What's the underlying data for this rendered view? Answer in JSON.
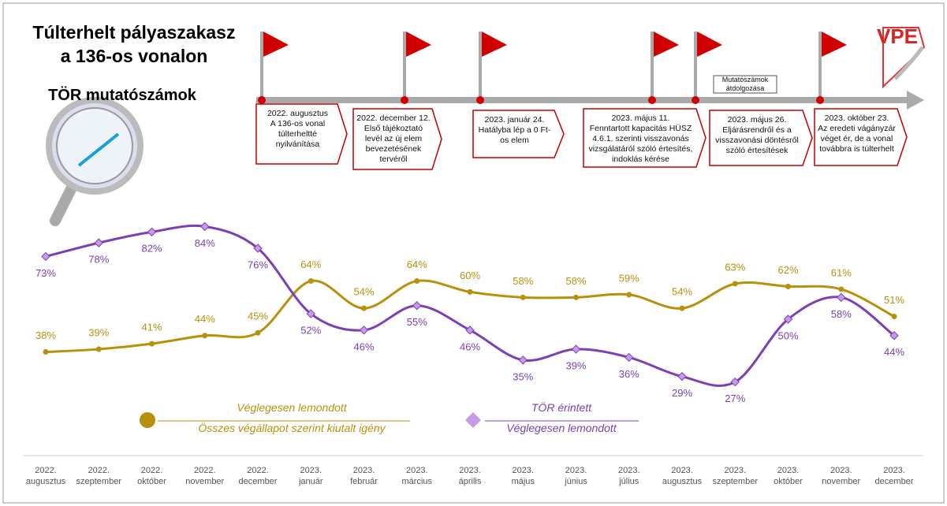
{
  "header": {
    "title": [
      "Túlterhelt pályaszakasz",
      "a 136-os vonalon"
    ],
    "subtitle": "TÖR mutatószámok",
    "logo": "VPE"
  },
  "timeline": {
    "note": "Mutatószámok átdolgozása",
    "events": [
      {
        "date": "2022. augusztus",
        "text": "A 136-os vonal túlterheltté nyilvánítása"
      },
      {
        "date": "2022. december 12.",
        "text": "Első tájékoztató levél az új elem bevezetésének tervéről"
      },
      {
        "date": "2023. január 24.",
        "text": "Hatályba lép a 0 Ft-os elem"
      },
      {
        "date": "2023. május 11.",
        "text": "Fenntartott kapacitás HÜSZ 4.6.1. szerinti visszavonás vizsgálatáról szóló értesítés, indoklás kérése"
      },
      {
        "date": "2023. május 26.",
        "text": "Eljárásrendről és a visszavonási döntésről szóló értesítések"
      },
      {
        "date": "2023. október 23.",
        "text": "Az eredeti vágányzár véget ér, de a vonal továbbra is túlterhelt"
      }
    ]
  },
  "chart_data": {
    "type": "line",
    "categories": [
      "2022. augusztus",
      "2022. szeptember",
      "2022. október",
      "2022. november",
      "2022. december",
      "2023. január",
      "2023. február",
      "2023. március",
      "2023. április",
      "2023. május",
      "2023. június",
      "2023. július",
      "2023. augusztus",
      "2023. szeptember",
      "2023. október",
      "2023. november",
      "2023. december"
    ],
    "series": [
      {
        "name": [
          "Véglegesen lemondott",
          "Összes végállapot szerint kiutalt igény"
        ],
        "color": "#b8900b",
        "marker": "circle",
        "values": [
          38,
          39,
          41,
          44,
          45,
          64,
          54,
          64,
          60,
          58,
          58,
          59,
          54,
          63,
          62,
          61,
          51
        ],
        "value_labels": [
          "38%",
          "39%",
          "41%",
          "44%",
          "45%",
          "64%",
          "54%",
          "64%",
          "60%",
          "58%",
          "58%",
          "59%",
          "54%",
          "63%",
          "62%",
          "61%",
          "51%"
        ]
      },
      {
        "name": [
          "TÖR érintett",
          "Véglegesen lemondott"
        ],
        "color": "#7b3fb8",
        "marker": "diamond",
        "values": [
          73,
          78,
          82,
          84,
          76,
          52,
          46,
          55,
          46,
          35,
          39,
          36,
          29,
          27,
          50,
          58,
          44
        ],
        "value_labels": [
          "73%",
          "78%",
          "82%",
          "84%",
          "76%",
          "52%",
          "46%",
          "55%",
          "46%",
          "35%",
          "39%",
          "36%",
          "29%",
          "27%",
          "50%",
          "58%",
          "44%"
        ]
      }
    ]
  }
}
